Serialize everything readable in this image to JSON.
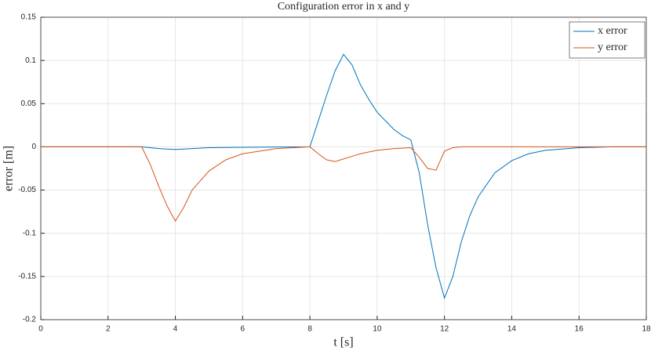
{
  "chart_data": {
    "type": "line",
    "title": "Configuration error in x and y",
    "xlabel": "t [s]",
    "ylabel": "error [m]",
    "x": [
      0,
      1,
      2,
      3,
      3.25,
      3.5,
      3.75,
      4,
      4.25,
      4.5,
      5,
      5.5,
      6,
      7,
      8,
      8.25,
      8.5,
      8.75,
      9,
      9.25,
      9.5,
      9.75,
      10,
      10.25,
      10.5,
      10.75,
      11,
      11.25,
      11.5,
      11.75,
      12,
      12.25,
      12.5,
      12.75,
      13,
      13.5,
      14,
      14.5,
      15,
      16,
      17,
      18
    ],
    "series": [
      {
        "name": "x error",
        "color": "#0072bd",
        "values": [
          0,
          0,
          0,
          0,
          -0.001,
          -0.002,
          -0.0025,
          -0.003,
          -0.0025,
          -0.002,
          -0.001,
          -0.0007,
          -0.0005,
          -0.0002,
          0,
          0.03,
          0.06,
          0.088,
          0.107,
          0.095,
          0.072,
          0.055,
          0.04,
          0.03,
          0.02,
          0.013,
          0.008,
          -0.03,
          -0.09,
          -0.14,
          -0.175,
          -0.15,
          -0.11,
          -0.08,
          -0.058,
          -0.03,
          -0.016,
          -0.008,
          -0.004,
          -0.001,
          0,
          0
        ]
      },
      {
        "name": "y error",
        "color": "#d95319",
        "values": [
          0,
          0,
          0,
          0,
          -0.02,
          -0.045,
          -0.068,
          -0.086,
          -0.07,
          -0.05,
          -0.028,
          -0.015,
          -0.008,
          -0.002,
          0,
          -0.008,
          -0.015,
          -0.017,
          -0.014,
          -0.011,
          -0.008,
          -0.006,
          -0.004,
          -0.003,
          -0.002,
          -0.0015,
          -0.001,
          -0.012,
          -0.025,
          -0.027,
          -0.005,
          -0.001,
          0,
          0,
          0,
          0,
          0,
          0,
          0,
          0,
          0,
          0
        ]
      }
    ],
    "xlim": [
      0,
      18
    ],
    "xticks": [
      0,
      2,
      4,
      6,
      8,
      10,
      12,
      14,
      16,
      18
    ],
    "ylim": [
      -0.2,
      0.15
    ],
    "yticks": [
      -0.2,
      -0.15,
      -0.1,
      -0.05,
      0,
      0.05,
      0.1,
      0.15
    ],
    "grid": true,
    "legend": "upper-right"
  }
}
